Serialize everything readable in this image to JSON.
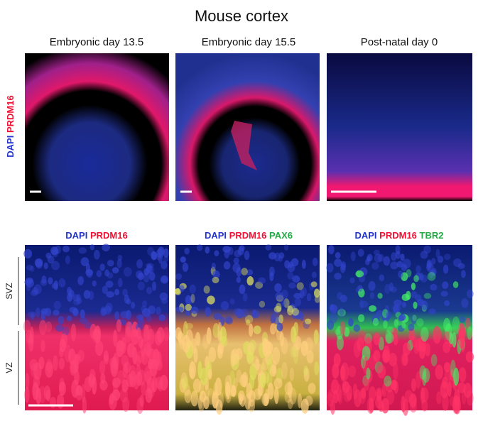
{
  "title": "Mouse cortex",
  "top_row": {
    "y_label": [
      "DAPI",
      "PRDM16"
    ],
    "panels": [
      {
        "title": "Embryonic day 13.5"
      },
      {
        "title": "Embryonic day 15.5"
      },
      {
        "title": "Post-natal day 0"
      }
    ]
  },
  "bottom_row": {
    "panels": [
      {
        "label": [
          "DAPI",
          "PRDM16"
        ]
      },
      {
        "label": [
          "DAPI",
          "PRDM16",
          "PAX6"
        ]
      },
      {
        "label": [
          "DAPI",
          "PRDM16",
          "TBR2"
        ]
      }
    ],
    "regions": [
      "SVZ",
      "VZ"
    ]
  }
}
